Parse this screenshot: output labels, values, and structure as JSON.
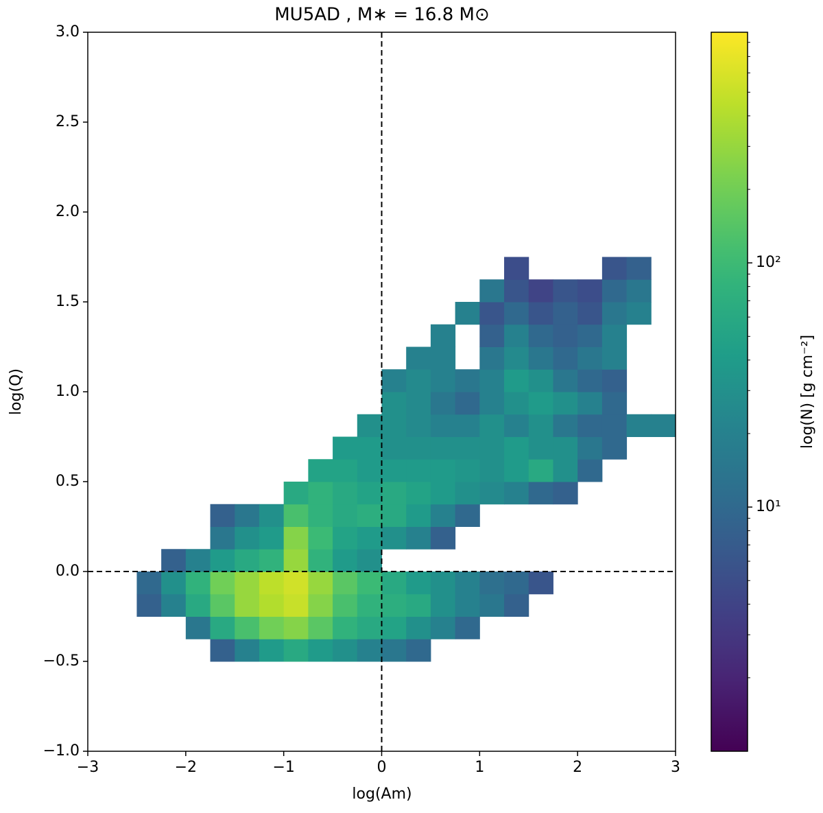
{
  "chart_data": {
    "type": "heatmap",
    "title": "MU5AD , M∗ = 16.8 M⊙",
    "x_label": "log(Am)",
    "y_label": "log(Q)",
    "colorbar_label": "log(N) [g cm⁻²]",
    "colormap": "viridis",
    "color_scale": "log",
    "clim": [
      1,
      880
    ],
    "cticks": [
      {
        "value": 10,
        "label": "10¹"
      },
      {
        "value": 100,
        "label": "10²"
      }
    ],
    "cticks_minor": [
      2,
      3,
      4,
      5,
      6,
      7,
      8,
      9,
      20,
      30,
      40,
      50,
      60,
      70,
      80,
      90,
      200,
      300,
      400,
      500,
      600,
      700,
      800
    ],
    "xlim": [
      -3,
      3
    ],
    "ylim": [
      -1,
      3
    ],
    "xticks": [
      {
        "value": -3,
        "label": "−3"
      },
      {
        "value": -2,
        "label": "−2"
      },
      {
        "value": -1,
        "label": "−1"
      },
      0,
      1,
      2,
      3
    ],
    "yticks": [
      {
        "value": -1,
        "label": "−1.0"
      },
      {
        "value": -0.5,
        "label": "−0.5"
      },
      {
        "value": 0,
        "label": "0.0"
      },
      0.5,
      {
        "value": 1,
        "label": "1.0"
      },
      1.5,
      {
        "value": 2,
        "label": "2.0"
      },
      2.5,
      {
        "value": 3,
        "label": "3.0"
      }
    ],
    "vlines": [
      0
    ],
    "hlines": [
      0
    ],
    "xbins": [
      -2.5,
      -2.25,
      -2,
      -1.75,
      -1.5,
      -1.25,
      -1,
      -0.75,
      -0.5,
      -0.25,
      0,
      0.25,
      0.5,
      0.75,
      1,
      1.25,
      1.5,
      1.75,
      2,
      2.25,
      2.5,
      2.75,
      3
    ],
    "ybins": [
      -0.5,
      -0.375,
      -0.25,
      -0.125,
      0,
      0.125,
      0.25,
      0.375,
      0.5,
      0.625,
      0.75,
      0.875,
      1,
      1.125,
      1.25,
      1.375,
      1.5,
      1.625,
      1.75
    ],
    "z": [
      [
        null,
        null,
        null,
        8,
        20,
        40,
        60,
        40,
        30,
        20,
        15,
        10,
        null,
        null,
        null,
        null,
        null,
        null,
        null,
        null,
        null,
        null
      ],
      [
        null,
        null,
        15,
        60,
        120,
        200,
        250,
        150,
        80,
        60,
        50,
        30,
        20,
        10,
        null,
        null,
        null,
        null,
        null,
        null,
        null,
        null
      ],
      [
        8,
        20,
        60,
        150,
        300,
        400,
        500,
        250,
        120,
        80,
        70,
        60,
        30,
        20,
        15,
        8,
        null,
        null,
        null,
        null,
        null,
        null
      ],
      [
        10,
        30,
        80,
        200,
        300,
        450,
        550,
        300,
        150,
        100,
        60,
        40,
        30,
        20,
        12,
        10,
        6,
        null,
        null,
        null,
        null,
        null
      ],
      [
        null,
        8,
        20,
        40,
        60,
        80,
        300,
        80,
        40,
        30,
        null,
        null,
        null,
        null,
        null,
        null,
        null,
        null,
        null,
        null,
        null,
        null
      ],
      [
        null,
        null,
        null,
        15,
        30,
        40,
        250,
        100,
        50,
        40,
        30,
        20,
        8,
        null,
        null,
        null,
        null,
        null,
        null,
        null,
        null,
        null
      ],
      [
        null,
        null,
        null,
        8,
        15,
        30,
        120,
        80,
        60,
        70,
        60,
        40,
        20,
        10,
        null,
        null,
        null,
        null,
        null,
        null,
        null,
        null
      ],
      [
        null,
        null,
        null,
        null,
        null,
        null,
        60,
        80,
        60,
        50,
        60,
        50,
        40,
        30,
        25,
        20,
        10,
        8,
        null,
        null,
        null,
        null
      ],
      [
        null,
        null,
        null,
        null,
        null,
        null,
        null,
        50,
        50,
        40,
        40,
        40,
        40,
        35,
        30,
        40,
        60,
        30,
        10,
        null,
        null,
        null
      ],
      [
        null,
        null,
        null,
        null,
        null,
        null,
        null,
        null,
        40,
        40,
        30,
        30,
        30,
        30,
        30,
        40,
        30,
        30,
        15,
        10,
        null,
        null
      ],
      [
        null,
        null,
        null,
        null,
        null,
        null,
        null,
        null,
        null,
        30,
        30,
        25,
        20,
        20,
        30,
        20,
        30,
        15,
        10,
        10,
        20,
        20
      ],
      [
        null,
        null,
        null,
        null,
        null,
        null,
        null,
        null,
        null,
        null,
        30,
        25,
        15,
        10,
        20,
        30,
        40,
        30,
        20,
        10,
        null,
        null
      ],
      [
        null,
        null,
        null,
        null,
        null,
        null,
        null,
        null,
        null,
        null,
        20,
        25,
        20,
        15,
        20,
        40,
        30,
        15,
        10,
        8,
        null,
        null
      ],
      [
        null,
        null,
        null,
        null,
        null,
        null,
        null,
        null,
        null,
        null,
        null,
        20,
        20,
        null,
        15,
        25,
        15,
        10,
        15,
        20,
        null,
        null
      ],
      [
        null,
        null,
        null,
        null,
        null,
        null,
        null,
        null,
        null,
        null,
        null,
        null,
        20,
        null,
        8,
        20,
        10,
        8,
        10,
        20,
        null,
        null
      ],
      [
        null,
        null,
        null,
        null,
        null,
        null,
        null,
        null,
        null,
        null,
        null,
        null,
        null,
        20,
        6,
        10,
        6,
        8,
        6,
        15,
        20,
        null
      ],
      [
        null,
        null,
        null,
        null,
        null,
        null,
        null,
        null,
        null,
        null,
        null,
        null,
        null,
        null,
        15,
        6,
        4,
        6,
        5,
        10,
        15,
        null
      ],
      [
        null,
        null,
        null,
        null,
        null,
        null,
        null,
        null,
        null,
        null,
        null,
        null,
        null,
        null,
        null,
        5,
        null,
        null,
        null,
        6,
        8,
        null
      ]
    ]
  }
}
